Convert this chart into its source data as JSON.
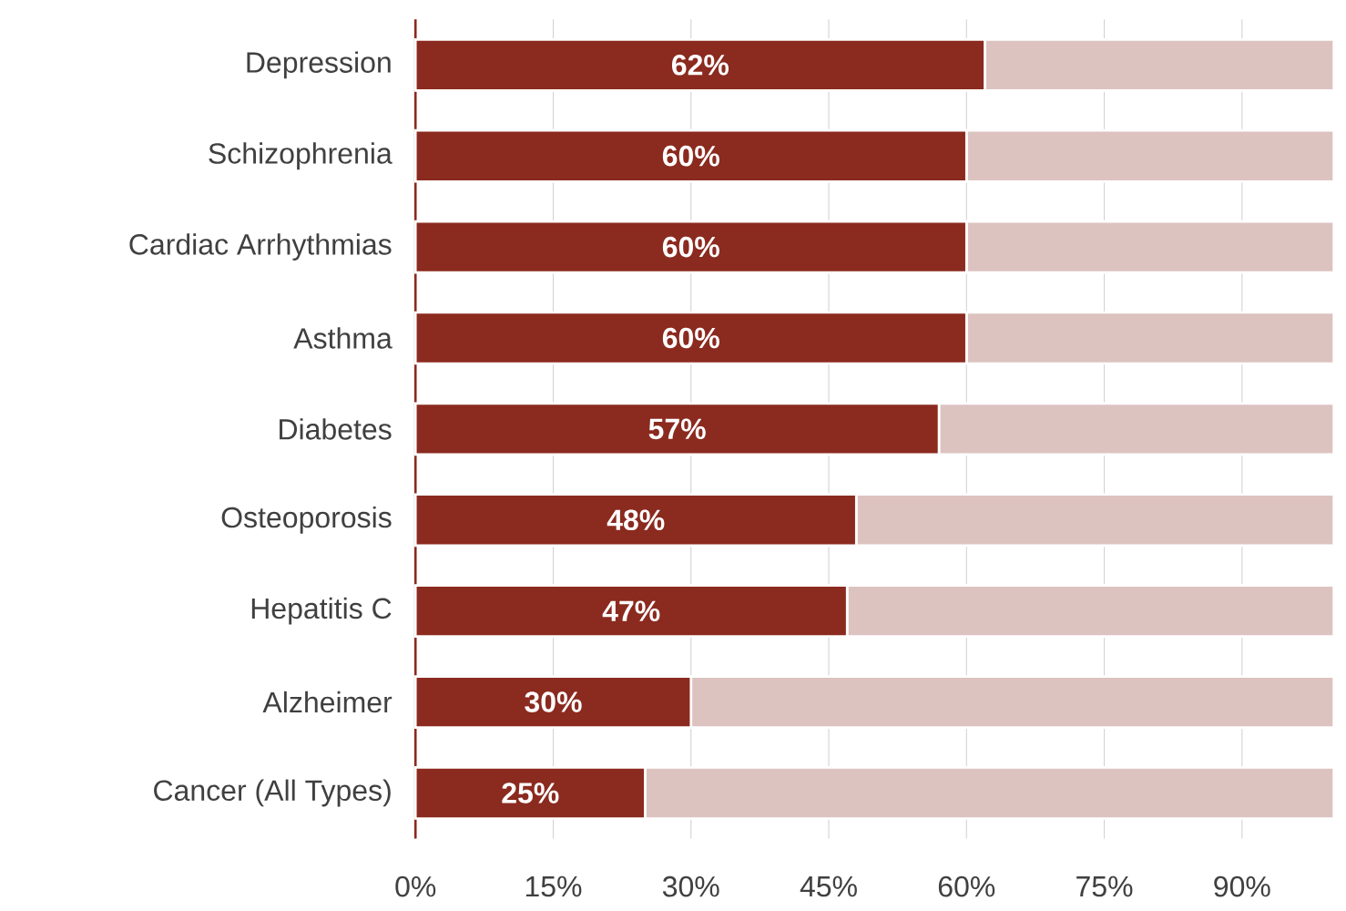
{
  "chart_data": {
    "type": "bar",
    "orientation": "horizontal",
    "stacked": true,
    "categories": [
      "Depression",
      "Schizophrenia",
      "Cardiac Arrhythmias",
      "Asthma",
      "Diabetes",
      "Osteoporosis",
      "Hepatitis C",
      "Alzheimer",
      "Cancer (All Types)"
    ],
    "series": [
      {
        "color": "#8b2a1f",
        "values": [
          62,
          60,
          60,
          60,
          57,
          48,
          47,
          30,
          25
        ],
        "value_labels": [
          "62%",
          "60%",
          "60%",
          "60%",
          "57%",
          "48%",
          "47%",
          "30%",
          "25%"
        ]
      },
      {
        "color": "#dcc3c0",
        "values": [
          38,
          40,
          40,
          40,
          43,
          52,
          53,
          70,
          75
        ]
      }
    ],
    "xlim": [
      0,
      100
    ],
    "xticks": [
      {
        "value": 0,
        "label": "0%"
      },
      {
        "value": 15,
        "label": "15%"
      },
      {
        "value": 30,
        "label": "30%"
      },
      {
        "value": 45,
        "label": "45%"
      },
      {
        "value": 60,
        "label": "60%"
      },
      {
        "value": 75,
        "label": "75%"
      },
      {
        "value": 90,
        "label": "90%"
      }
    ],
    "grid": "x"
  }
}
